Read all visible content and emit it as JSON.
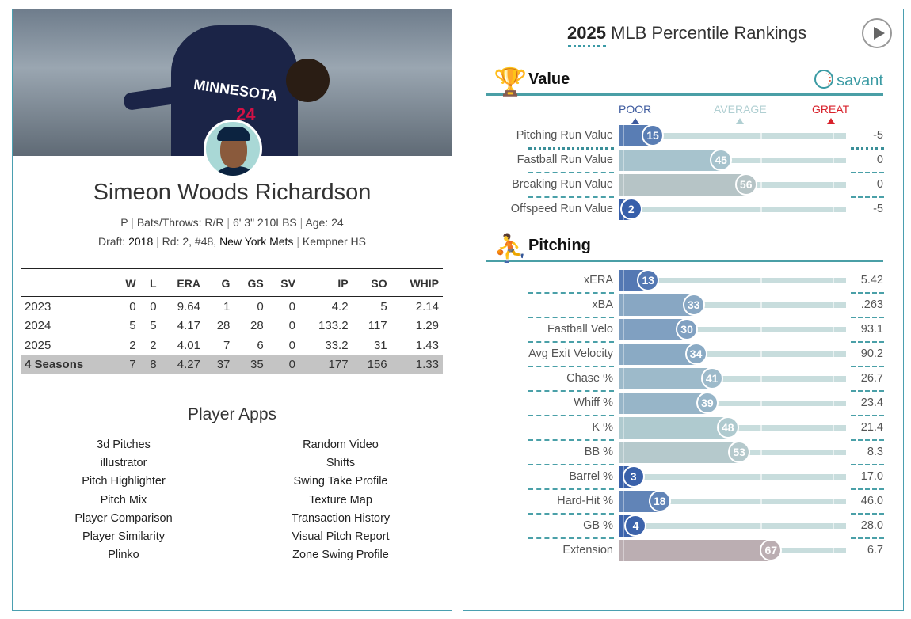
{
  "player": {
    "name": "Simeon Woods Richardson",
    "jersey_text": "MINNESOTA",
    "jersey_number": "24",
    "position": "P",
    "bats_throws": "Bats/Throws: R/R",
    "size": "6' 3\" 210LBS",
    "age": "Age: 24",
    "draft_label": "Draft:",
    "draft_year": "2018",
    "draft_round": "Rd: 2, #48,",
    "draft_team": "New York Mets",
    "school": "Kempner HS"
  },
  "stats": {
    "headers": [
      "",
      "W",
      "L",
      "ERA",
      "G",
      "GS",
      "SV",
      "IP",
      "SO",
      "WHIP"
    ],
    "rows": [
      [
        "2023",
        "0",
        "0",
        "9.64",
        "1",
        "0",
        "0",
        "4.2",
        "5",
        "2.14"
      ],
      [
        "2024",
        "5",
        "5",
        "4.17",
        "28",
        "28",
        "0",
        "133.2",
        "117",
        "1.29"
      ],
      [
        "2025",
        "2",
        "2",
        "4.01",
        "7",
        "6",
        "0",
        "33.2",
        "31",
        "1.43"
      ]
    ],
    "total": [
      "4 Seasons",
      "7",
      "8",
      "4.27",
      "37",
      "35",
      "0",
      "177",
      "156",
      "1.33"
    ]
  },
  "apps": {
    "title": "Player Apps",
    "left": [
      "3d Pitches",
      "illustrator",
      "Pitch Highlighter",
      "Pitch Mix",
      "Player Comparison",
      "Player Similarity",
      "Plinko"
    ],
    "right": [
      "Random Video",
      "Shifts",
      "Swing Take Profile",
      "Texture Map",
      "Transaction History",
      "Visual Pitch Report",
      "Zone Swing Profile"
    ]
  },
  "rankings": {
    "year": "2025",
    "title": "MLB Percentile Rankings",
    "savant": "savant",
    "legend": {
      "poor": "POOR",
      "average": "AVERAGE",
      "great": "GREAT"
    },
    "colors": {
      "poor": "#325aa8",
      "average": "#b4cfd1",
      "great": "#d8212b"
    },
    "value": {
      "title": "Value",
      "rows": [
        {
          "label": "Pitching Run Value",
          "pct": 15,
          "value": "-5"
        },
        {
          "label": "Fastball Run Value",
          "pct": 45,
          "value": "0"
        },
        {
          "label": "Breaking Run Value",
          "pct": 56,
          "value": "0"
        },
        {
          "label": "Offspeed Run Value",
          "pct": 2,
          "value": "-5"
        }
      ]
    },
    "pitching": {
      "title": "Pitching",
      "rows": [
        {
          "label": "xERA",
          "pct": 13,
          "value": "5.42"
        },
        {
          "label": "xBA",
          "pct": 33,
          "value": ".263"
        },
        {
          "label": "Fastball Velo",
          "pct": 30,
          "value": "93.1"
        },
        {
          "label": "Avg Exit Velocity",
          "pct": 34,
          "value": "90.2"
        },
        {
          "label": "Chase %",
          "pct": 41,
          "value": "26.7"
        },
        {
          "label": "Whiff %",
          "pct": 39,
          "value": "23.4"
        },
        {
          "label": "K %",
          "pct": 48,
          "value": "21.4"
        },
        {
          "label": "BB %",
          "pct": 53,
          "value": "8.3"
        },
        {
          "label": "Barrel %",
          "pct": 3,
          "value": "17.0"
        },
        {
          "label": "Hard-Hit %",
          "pct": 18,
          "value": "46.0"
        },
        {
          "label": "GB %",
          "pct": 4,
          "value": "28.0"
        },
        {
          "label": "Extension",
          "pct": 67,
          "value": "6.7"
        }
      ]
    }
  }
}
